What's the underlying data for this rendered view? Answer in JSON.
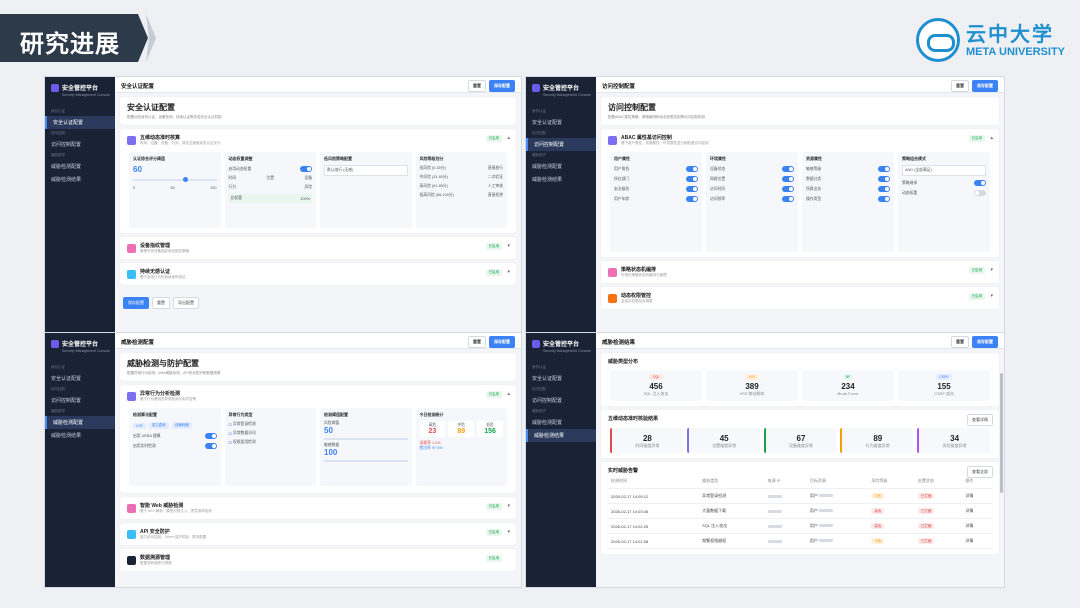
{
  "slide": {
    "title": "研究进展",
    "logo_cn": "云中大学",
    "logo_en": "META UNIVERSITY"
  },
  "app": {
    "brand": "安全管控平台",
    "brand_sub": "Security Management Console",
    "sec1": "身份认证",
    "sec2": "访问控制",
    "sec3": "威胁防护",
    "nav": [
      "安全认证配置",
      "访问控制配置",
      "威胁检测配置",
      "威胁检测结果"
    ],
    "btn_reset": "重置",
    "btn_save": "保存配置"
  },
  "s1": {
    "page": "安全认证配置",
    "title": "安全认证配置",
    "desc": "配置动态身份认证、设备检测、持续认证等多层安全认证机制",
    "r1": {
      "title": "五维动态准时核算",
      "desc": "时间、位置、设备、行为、风险五维度动态认证评分"
    },
    "r2": {
      "title": "设备指纹管理",
      "desc": "管理可信设备指纹库及绑定策略"
    },
    "r3": {
      "title": "持续无感认证",
      "desc": "基于会话行为的持续身份验证"
    },
    "status": "已启用",
    "threshold_label": "认证综合评分阈值",
    "threshold": "60",
    "ticks": [
      "0",
      "50",
      "100"
    ],
    "weights_title": "动态权重调整",
    "weights_toggle": "启用动态权重",
    "w": [
      "时间",
      "位置",
      "设备",
      "行为",
      "风险"
    ],
    "wtotal": "总权重",
    "wtotal_v": "100%",
    "policy_title": "低风险策略配置",
    "policy_sel": "默认放行 (无感)",
    "levels_title": "风险等级划分",
    "levels": [
      [
        "低风险 (0-30分)",
        "直接放行"
      ],
      [
        "中风险 (31-60分)",
        "二次验证"
      ],
      [
        "高风险 (61-85分)",
        "人工审核"
      ],
      [
        "极高风险 (86-100分)",
        "直接拒绝"
      ]
    ],
    "b_save": "保存配置",
    "b_reset": "重置",
    "b_export": "导出配置"
  },
  "s2": {
    "page": "访问控制配置",
    "title": "访问控制配置",
    "desc": "配置ABAC属性策略、策略编排和动态权限控制等访问控制机制",
    "r1": {
      "title": "ABAC 属性基访问控制",
      "desc": "基于用户属性、资源属性、环境属性进行细粒度访问控制"
    },
    "r2": {
      "title": "策略状态机编排",
      "desc": "可视化策略状态机编排与管理"
    },
    "r3": {
      "title": "动态权限管控",
      "desc": "会话中权限动态调整"
    },
    "status": "已启用",
    "cols": [
      {
        "t": "用户属性",
        "i": [
          "用户角色",
          "所在部门",
          "安全级别",
          "用户年龄"
        ]
      },
      {
        "t": "环境属性",
        "i": [
          "设备状态",
          "网络位置",
          "访问时间",
          "访问频率"
        ]
      },
      {
        "t": "资源属性",
        "i": [
          "敏感等级",
          "数据分类",
          "所属业务",
          "操作类型"
        ]
      }
    ],
    "combine_title": "策略组合模式",
    "combine_sel": "AND (全部满足)",
    "extra": [
      "策略继承",
      "动态权重"
    ]
  },
  "s3": {
    "page": "威胁检测配置",
    "title": "威胁检测与防护配置",
    "desc": "配置异常行为检测、Web威胁检测、API安全防护和数据溯源",
    "r1": {
      "title": "异常行为分析检测",
      "desc": "基于行为基线的异常检测与实时告警"
    },
    "r2": {
      "title": "智能 Web 威胁检测",
      "desc": "基于 AST 解析、模型识别注入、恶意请求检测"
    },
    "r3": {
      "title": "API 安全防护",
      "desc": "接口访问控制、Token 保护机制、限流配置"
    },
    "r4": {
      "title": "数据溯源管理",
      "desc": "数据流转追踪与溯源"
    },
    "status": "已启用",
    "p1": "检测算法配置",
    "algos": [
      "LOF",
      "孤立森林",
      "自编码器"
    ],
    "p1a": "启用 UEBA 建模",
    "p1b": "启用实时检测",
    "p2": "异常行为类型",
    "checks": [
      "异常登录检测",
      "异常数据访问",
      "权限滥用检测"
    ],
    "p3": "检测阈值配置",
    "lbl_a": "风险阈值",
    "val_a": "50",
    "lbl_b": "敏感数据",
    "val_b": "100",
    "p4": "今日检测统计",
    "high": "高危",
    "mid": "中危",
    "low": "低危",
    "nh": "23",
    "nm": "89",
    "nl": "156",
    "f1": "误报率 1.2%",
    "f2": "检出率 97.6%"
  },
  "s4": {
    "page": "威胁检测结果",
    "dist_title": "威胁类型分布",
    "stats": [
      [
        "SQL",
        "456",
        "SQL 注入攻击"
      ],
      [
        "XSS",
        "389",
        "XSS 跨站脚本"
      ],
      [
        "BF",
        "234",
        "Brute Force"
      ],
      [
        "CSRF",
        "155",
        "CSRF 攻击"
      ]
    ],
    "five_title": "五维动态准时核验结果",
    "five_link": "查看详情",
    "five": [
      [
        "28",
        "时间维度异常"
      ],
      [
        "45",
        "位置维度异常"
      ],
      [
        "67",
        "设备维度异常"
      ],
      [
        "89",
        "行为维度异常"
      ],
      [
        "34",
        "风险维度异常"
      ]
    ],
    "tbl_title": "实时威胁告警",
    "tbl_link": "查看全部",
    "cols": [
      "检测时间",
      "威胁类型",
      "来源 IP",
      "目标资源",
      "风险等级",
      "处置状态",
      "操作"
    ],
    "rows": [
      [
        "2026-02-17 14:05:12",
        "异常登录检测",
        "中危",
        "已拦截"
      ],
      [
        "2026-02-17 14:03:45",
        "大量数据下载",
        "高危",
        "已拦截"
      ],
      [
        "2026-02-17 14:02:25",
        "SQL 注入攻击",
        "高危",
        "已拦截"
      ],
      [
        "2026-02-17 14:01:08",
        "频繁权限越权",
        "中危",
        "已拦截"
      ]
    ],
    "op": "详情",
    "target": "用户"
  }
}
